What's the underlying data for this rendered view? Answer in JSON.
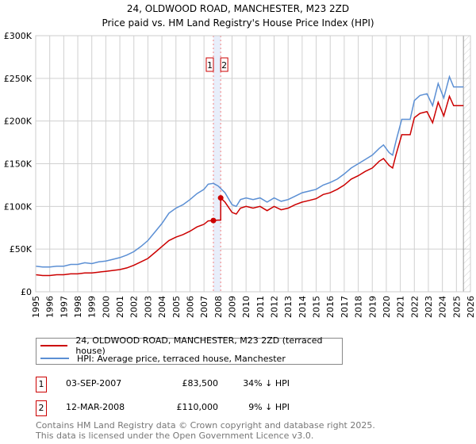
{
  "chart_data": {
    "type": "line",
    "title": "24, OLDWOOD ROAD, MANCHESTER, M23 2ZD",
    "subtitle": "Price paid vs. HM Land Registry's House Price Index (HPI)",
    "xlim": [
      1995,
      2026
    ],
    "ylim": [
      0,
      300000
    ],
    "xticks": [
      "1995",
      "1996",
      "1997",
      "1998",
      "1999",
      "2000",
      "2001",
      "2002",
      "2003",
      "2004",
      "2005",
      "2006",
      "2007",
      "2008",
      "2009",
      "2010",
      "2011",
      "2012",
      "2013",
      "2014",
      "2015",
      "2016",
      "2017",
      "2018",
      "2019",
      "2020",
      "2021",
      "2022",
      "2023",
      "2024",
      "2025",
      "2026"
    ],
    "yticks": [
      {
        "v": 0,
        "label": "£0"
      },
      {
        "v": 50000,
        "label": "£50K"
      },
      {
        "v": 100000,
        "label": "£100K"
      },
      {
        "v": 150000,
        "label": "£150K"
      },
      {
        "v": 200000,
        "label": "£200K"
      },
      {
        "v": 250000,
        "label": "£250K"
      },
      {
        "v": 300000,
        "label": "£300K"
      }
    ],
    "grid": true,
    "forecast_from": 2025.5,
    "series": [
      {
        "name": "24, OLDWOOD ROAD, MANCHESTER, M23 2ZD (terraced house)",
        "color": "#cc0000",
        "x": [
          1995,
          1995.5,
          1996,
          1996.5,
          1997,
          1997.5,
          1998,
          1998.5,
          1999,
          1999.5,
          2000,
          2000.5,
          2001,
          2001.5,
          2002,
          2002.5,
          2003,
          2003.5,
          2004,
          2004.5,
          2005,
          2005.5,
          2006,
          2006.5,
          2007,
          2007.3,
          2007.67,
          2008.0,
          2008.19,
          2008.19,
          2008.5,
          2009,
          2009.3,
          2009.6,
          2010,
          2010.5,
          2011,
          2011.5,
          2012,
          2012.5,
          2013,
          2013.5,
          2014,
          2014.5,
          2015,
          2015.5,
          2016,
          2016.5,
          2017,
          2017.5,
          2018,
          2018.5,
          2019,
          2019.5,
          2019.8,
          2020.2,
          2020.45,
          2020.7,
          2021.1,
          2021.7,
          2022,
          2022.4,
          2022.9,
          2023.3,
          2023.7,
          2024.1,
          2024.5,
          2024.8,
          2025.5
        ],
        "y": [
          20,
          19,
          19,
          20,
          20,
          21,
          21,
          22,
          22,
          23,
          24,
          25,
          26,
          28,
          31,
          35,
          39,
          46,
          53,
          60,
          64,
          67,
          71,
          76,
          79,
          83,
          83.5,
          84,
          84,
          110,
          105,
          93,
          91,
          98,
          100,
          98,
          100,
          95,
          100,
          96,
          98,
          102,
          105,
          107,
          109,
          114,
          116,
          120,
          125,
          132,
          136,
          141,
          145,
          153,
          156,
          148,
          145,
          161,
          184,
          184,
          204,
          209,
          211,
          198,
          222,
          206,
          229,
          218,
          218
        ]
      },
      {
        "name": "HPI: Average price, terraced house, Manchester",
        "color": "#5b8fd4",
        "x": [
          1995,
          1995.5,
          1996,
          1996.5,
          1997,
          1997.5,
          1998,
          1998.5,
          1999,
          1999.5,
          2000,
          2000.5,
          2001,
          2001.5,
          2002,
          2002.5,
          2003,
          2003.5,
          2004,
          2004.5,
          2005,
          2005.5,
          2006,
          2006.5,
          2007,
          2007.3,
          2007.67,
          2008,
          2008.19,
          2008.5,
          2009,
          2009.3,
          2009.6,
          2010,
          2010.5,
          2011,
          2011.5,
          2012,
          2012.5,
          2013,
          2013.5,
          2014,
          2014.5,
          2015,
          2015.5,
          2016,
          2016.5,
          2017,
          2017.5,
          2018,
          2018.5,
          2019,
          2019.5,
          2019.8,
          2020.2,
          2020.45,
          2020.7,
          2021.1,
          2021.7,
          2022,
          2022.4,
          2022.9,
          2023.3,
          2023.7,
          2024.1,
          2024.5,
          2024.8,
          2025.5
        ],
        "y": [
          30,
          29,
          29,
          30,
          30,
          32,
          32,
          34,
          33,
          35,
          36,
          38,
          40,
          43,
          47,
          53,
          60,
          70,
          80,
          92,
          98,
          102,
          108,
          115,
          120,
          126,
          127,
          124,
          121,
          116,
          102,
          100,
          108,
          110,
          108,
          110,
          105,
          110,
          106,
          108,
          112,
          116,
          118,
          120,
          125,
          128,
          132,
          138,
          145,
          150,
          155,
          160,
          168,
          172,
          163,
          160,
          177,
          202,
          202,
          224,
          230,
          232,
          218,
          244,
          227,
          252,
          240,
          240
        ]
      }
    ],
    "y_units": "thousands GBP",
    "sales": [
      {
        "id": "1",
        "x": 2007.67,
        "price": 83.5,
        "date": "03-SEP-2007",
        "price_label": "£83,500",
        "hpi_label": "34% ↓ HPI"
      },
      {
        "id": "2",
        "x": 2008.19,
        "price": 110,
        "date": "12-MAR-2008",
        "price_label": "£110,000",
        "hpi_label": "9% ↓ HPI"
      }
    ]
  },
  "legend": {
    "red": "24, OLDWOOD ROAD, MANCHESTER, M23 2ZD (terraced house)",
    "blue": "HPI: Average price, terraced house, Manchester"
  },
  "footer": {
    "line1": "Contains HM Land Registry data © Crown copyright and database right 2025.",
    "line2": "This data is licensed under the Open Government Licence v3.0."
  }
}
